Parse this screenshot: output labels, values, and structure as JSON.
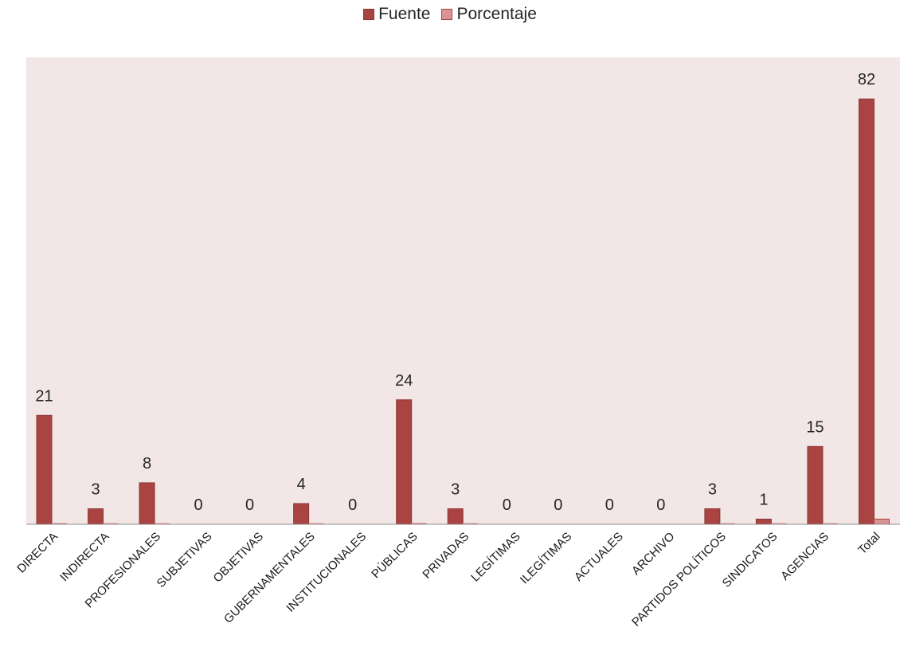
{
  "chart_data": {
    "type": "bar",
    "title": "",
    "xlabel": "",
    "ylabel": "",
    "ylim": [
      0,
      90
    ],
    "grid": false,
    "legend_position": "top",
    "categories": [
      "DIRECTA",
      "INDIRECTA",
      "PROFESIONALES",
      "SUBJETIVAS",
      "OBJETIVAS",
      "GUBERNAMENTALES",
      "INSTITUCIONALES",
      "PÚBLICAS",
      "PRIVADAS",
      "LEGÍTIMAS",
      "ILEGÍTIMAS",
      "ACTUALES",
      "ARCHIVO",
      "PARTIDOS POLÍTICOS",
      "SINDICATOS",
      "AGENCIAS",
      "Total"
    ],
    "series": [
      {
        "name": "Fuente",
        "color": "#a94442",
        "values": [
          21,
          3,
          8,
          0,
          0,
          4,
          0,
          24,
          3,
          0,
          0,
          0,
          0,
          3,
          1,
          15,
          82
        ]
      },
      {
        "name": "Porcentaje",
        "color": "#d99594",
        "values": [
          0.26,
          0.04,
          0.1,
          0,
          0,
          0.05,
          0,
          0.29,
          0.04,
          0,
          0,
          0,
          0,
          0.04,
          0.01,
          0.18,
          1
        ]
      }
    ],
    "data_labels": [
      "21",
      "3",
      "8",
      "0",
      "0",
      "4",
      "0",
      "24",
      "3",
      "0",
      "0",
      "0",
      "0",
      "3",
      "1",
      "15",
      "82"
    ],
    "plot_background": "#f2e6e6"
  }
}
